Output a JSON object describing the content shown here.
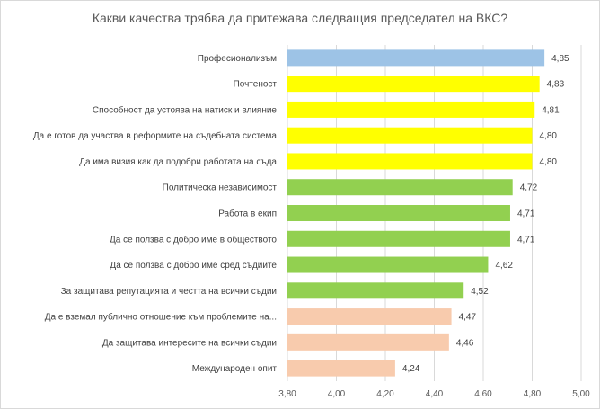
{
  "chart_data": {
    "type": "bar",
    "orientation": "horizontal",
    "title": "Какви качества трябва да притежава следващия председател на ВКС?",
    "categories": [
      "Професионализъм",
      "Почтеност",
      "Способност да устоява на натиск и влияние",
      "Да е готов да участва в реформите на съдебната система",
      "Да има визия как да подобри работата на съда",
      "Политическа независимост",
      "Работа в екип",
      "Да се ползва с добро име в обществото",
      "Да се ползва с добро име сред съдиите",
      "За защитава репутацията и честта на всички съдии",
      "Да е вземал публично отношение към проблемите на...",
      "Да защитава интересите на всички съдии",
      "Международен опит"
    ],
    "values": [
      4.85,
      4.83,
      4.81,
      4.8,
      4.8,
      4.72,
      4.71,
      4.71,
      4.62,
      4.52,
      4.47,
      4.46,
      4.24
    ],
    "value_labels": [
      "4,85",
      "4,83",
      "4,81",
      "4,80",
      "4,80",
      "4,72",
      "4,71",
      "4,71",
      "4,62",
      "4,52",
      "4,47",
      "4,46",
      "4,24"
    ],
    "bar_colors": [
      "#9dc3e6",
      "#ffff00",
      "#ffff00",
      "#ffff00",
      "#ffff00",
      "#92d050",
      "#92d050",
      "#92d050",
      "#92d050",
      "#92d050",
      "#f8cbad",
      "#f8cbad",
      "#f8cbad"
    ],
    "xlim": [
      3.8,
      5.0
    ],
    "xticks": [
      3.8,
      4.0,
      4.2,
      4.4,
      4.6,
      4.8,
      5.0
    ],
    "xtick_labels": [
      "3,80",
      "4,00",
      "4,20",
      "4,40",
      "4,60",
      "4,80",
      "5,00"
    ],
    "grid": true,
    "gridline_color": "#d9d9d9",
    "xlabel": "",
    "ylabel": ""
  }
}
